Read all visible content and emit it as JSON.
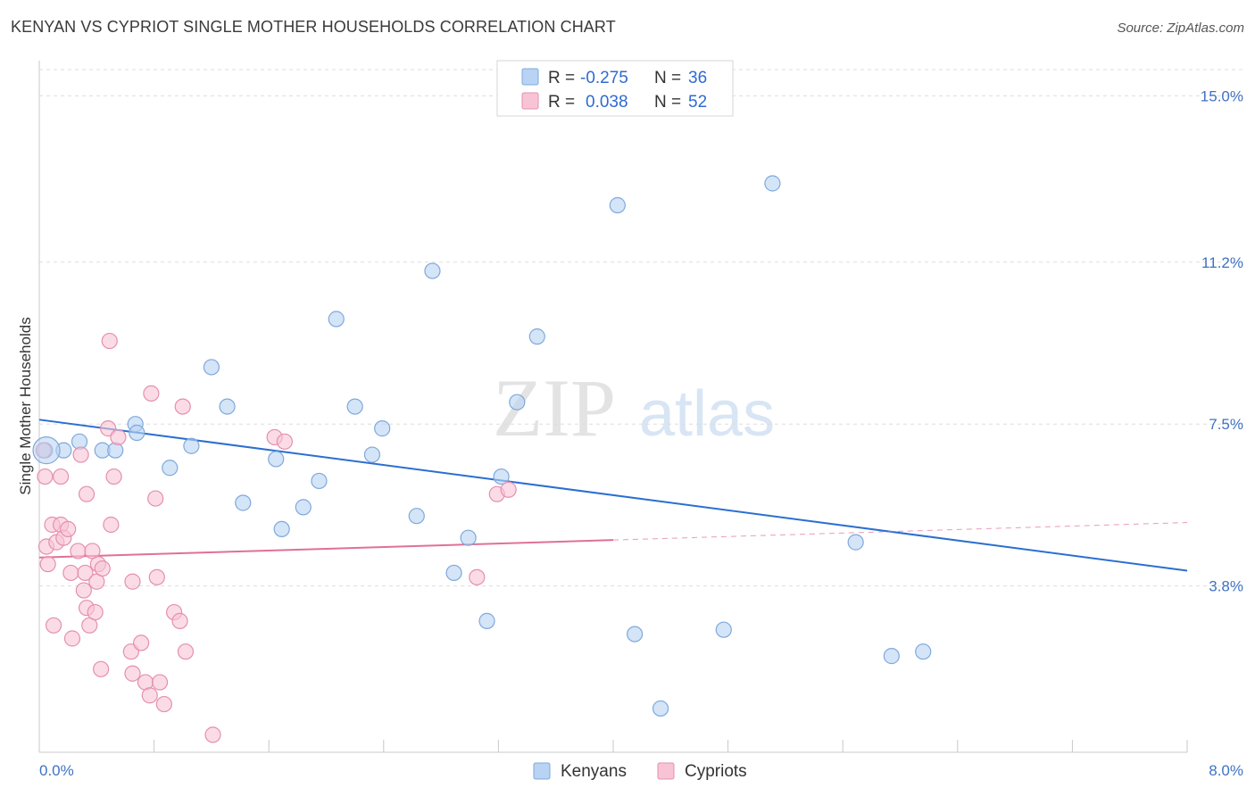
{
  "title": "KENYAN VS CYPRIOT SINGLE MOTHER HOUSEHOLDS CORRELATION CHART",
  "source": "Source: ZipAtlas.com",
  "watermark": {
    "zip": "ZIP",
    "atlas": "atlas"
  },
  "colors": {
    "kenyan_fill": "#b8d3f3",
    "kenyan_stroke": "#7fa8dc",
    "kenyan_line": "#2b6fd0",
    "cypriot_fill": "#f8c4d5",
    "cypriot_stroke": "#e58fae",
    "cypriot_line": "#e07097",
    "grid": "#dddddd",
    "tick_text": "#3f72c4"
  },
  "legend": {
    "rows": [
      {
        "r_label": "R =",
        "r_value": "-0.275",
        "n_label": "N =",
        "n_value": "36"
      },
      {
        "r_label": "R =",
        "r_value": "0.038",
        "n_label": "N =",
        "n_value": "52"
      }
    ],
    "bottom": [
      "Kenyans",
      "Cypriots"
    ]
  },
  "chart_data": {
    "type": "scatter",
    "title": "KENYAN VS CYPRIOT SINGLE MOTHER HOUSEHOLDS CORRELATION CHART",
    "xlabel": "",
    "ylabel": "Single Mother Households",
    "xlim": [
      0.0,
      8.0
    ],
    "ylim": [
      0.0,
      15.6
    ],
    "x_tick_labels": [
      "0.0%",
      "8.0%"
    ],
    "y_ticks": [
      3.8,
      7.5,
      11.2,
      15.0
    ],
    "y_tick_labels": [
      "3.8%",
      "7.5%",
      "11.2%",
      "15.0%"
    ],
    "grid": true,
    "legend_position": "top-center",
    "series": [
      {
        "name": "Kenyans",
        "r": -0.275,
        "n": 36,
        "points": [
          [
            0.04,
            6.9
          ],
          [
            0.17,
            6.9
          ],
          [
            0.28,
            7.1
          ],
          [
            0.44,
            6.9
          ],
          [
            0.53,
            6.9
          ],
          [
            0.67,
            7.5
          ],
          [
            0.68,
            7.3
          ],
          [
            0.91,
            6.5
          ],
          [
            1.06,
            7.0
          ],
          [
            1.2,
            8.8
          ],
          [
            1.31,
            7.9
          ],
          [
            1.42,
            5.7
          ],
          [
            1.65,
            6.7
          ],
          [
            1.69,
            5.1
          ],
          [
            1.84,
            5.6
          ],
          [
            1.95,
            6.2
          ],
          [
            2.07,
            9.9
          ],
          [
            2.2,
            7.9
          ],
          [
            2.32,
            6.8
          ],
          [
            2.39,
            7.4
          ],
          [
            2.63,
            5.4
          ],
          [
            2.74,
            11.0
          ],
          [
            2.89,
            4.1
          ],
          [
            2.99,
            4.9
          ],
          [
            3.12,
            3.0
          ],
          [
            3.22,
            6.3
          ],
          [
            3.33,
            8.0
          ],
          [
            3.47,
            9.5
          ],
          [
            4.03,
            12.5
          ],
          [
            4.15,
            2.7
          ],
          [
            4.33,
            1.0
          ],
          [
            4.77,
            2.8
          ],
          [
            5.11,
            13.0
          ],
          [
            5.69,
            4.8
          ],
          [
            5.94,
            2.2
          ],
          [
            6.16,
            2.3
          ]
        ],
        "trend": {
          "x": [
            0.0,
            8.0
          ],
          "y": [
            7.6,
            4.15
          ]
        }
      },
      {
        "name": "Cypriots",
        "r": 0.038,
        "n": 52,
        "points": [
          [
            0.03,
            6.9
          ],
          [
            0.04,
            6.3
          ],
          [
            0.05,
            4.7
          ],
          [
            0.06,
            4.3
          ],
          [
            0.09,
            5.2
          ],
          [
            0.12,
            4.8
          ],
          [
            0.15,
            5.2
          ],
          [
            0.15,
            6.3
          ],
          [
            0.17,
            4.9
          ],
          [
            0.2,
            5.1
          ],
          [
            0.22,
            4.1
          ],
          [
            0.23,
            2.6
          ],
          [
            0.27,
            4.6
          ],
          [
            0.29,
            6.8
          ],
          [
            0.31,
            3.7
          ],
          [
            0.32,
            4.1
          ],
          [
            0.33,
            5.9
          ],
          [
            0.33,
            3.3
          ],
          [
            0.35,
            2.9
          ],
          [
            0.37,
            4.6
          ],
          [
            0.39,
            3.2
          ],
          [
            0.4,
            3.9
          ],
          [
            0.41,
            4.3
          ],
          [
            0.43,
            1.9
          ],
          [
            0.44,
            4.2
          ],
          [
            0.48,
            7.4
          ],
          [
            0.49,
            9.4
          ],
          [
            0.5,
            5.2
          ],
          [
            0.52,
            6.3
          ],
          [
            0.55,
            7.2
          ],
          [
            0.64,
            2.3
          ],
          [
            0.65,
            3.9
          ],
          [
            0.65,
            1.8
          ],
          [
            0.71,
            2.5
          ],
          [
            0.74,
            1.6
          ],
          [
            0.77,
            1.3
          ],
          [
            0.78,
            8.2
          ],
          [
            0.81,
            5.8
          ],
          [
            0.82,
            4.0
          ],
          [
            0.84,
            1.6
          ],
          [
            0.87,
            1.1
          ],
          [
            0.94,
            3.2
          ],
          [
            0.98,
            3.0
          ],
          [
            1.0,
            7.9
          ],
          [
            1.02,
            2.3
          ],
          [
            1.21,
            0.4
          ],
          [
            1.64,
            7.2
          ],
          [
            1.71,
            7.1
          ],
          [
            3.05,
            4.0
          ],
          [
            3.19,
            5.9
          ],
          [
            3.27,
            6.0
          ],
          [
            0.1,
            2.9
          ]
        ],
        "trend": {
          "x": [
            0.0,
            4.0
          ],
          "y": [
            4.45,
            4.85
          ]
        },
        "trend_extension": {
          "x": [
            4.0,
            8.0
          ],
          "y": [
            4.85,
            5.25
          ]
        }
      }
    ]
  }
}
